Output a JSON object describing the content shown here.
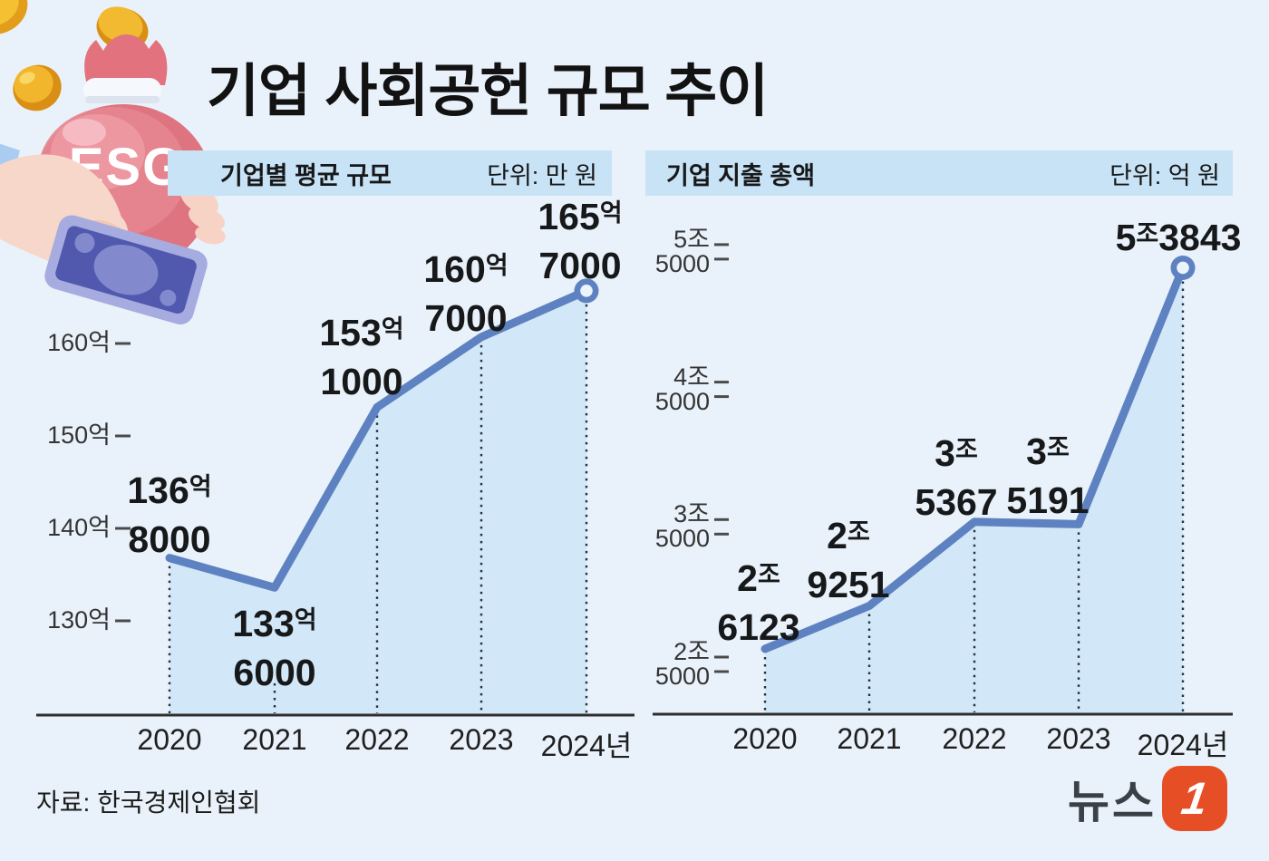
{
  "page": {
    "background": "#e9f2fa"
  },
  "title": "기업 사회공헌 규모 추이",
  "illustration": {
    "bag_text": "ESG"
  },
  "source_line": "자료: 한국경제인협회",
  "logo": {
    "wordmark": "뉴스",
    "badge": "1",
    "badge_color": "#e64e25",
    "text_color": "#3a4046"
  },
  "colors": {
    "line": "#5e82c1",
    "area_fill": "#d2e7f7",
    "header_bar": "#c8e3f5",
    "axis": "#2e2e2e",
    "guide_dot": "#24313f",
    "background": "#e9f2fa"
  },
  "chart_data": [
    {
      "type": "area",
      "title": "기업별 평균 규모",
      "unit_label": "단위: 만 원",
      "x_labels": [
        "2020",
        "2021",
        "2022",
        "2023",
        "2024년"
      ],
      "values": [
        136.8,
        133.6,
        153.1,
        160.7,
        165.7
      ],
      "value_unit": "억 원 (표기 단위: 만 원)",
      "point_labels": [
        {
          "big": "136",
          "suffix": "억",
          "sub": "8000"
        },
        {
          "big": "133",
          "suffix": "억",
          "sub": "6000"
        },
        {
          "big": "153",
          "suffix": "억",
          "sub": "1000"
        },
        {
          "big": "160",
          "suffix": "억",
          "sub": "7000"
        },
        {
          "big": "165",
          "suffix": "억",
          "sub": "7000"
        }
      ],
      "y_ticks": [
        {
          "value": 160,
          "label": "160억"
        },
        {
          "value": 150,
          "label": "150억"
        },
        {
          "value": 140,
          "label": "140억"
        },
        {
          "value": 130,
          "label": "130억"
        }
      ],
      "ylim": [
        120,
        172
      ],
      "grid": false,
      "legend": false
    },
    {
      "type": "area",
      "title": "기업 지출 총액",
      "unit_label": "단위: 억 원",
      "x_labels": [
        "2020",
        "2021",
        "2022",
        "2023",
        "2024년"
      ],
      "values": [
        26123,
        29251,
        35367,
        35191,
        53843
      ],
      "value_unit": "억 원",
      "point_labels": [
        {
          "big": "2",
          "suffix": "조",
          "sub": "6123"
        },
        {
          "big": "2",
          "suffix": "조",
          "sub": "9251"
        },
        {
          "big": "3",
          "suffix": "조",
          "sub": "5367"
        },
        {
          "big": "3",
          "suffix": "조",
          "sub": "5191"
        },
        {
          "big": "5",
          "suffix": "조",
          "sub": "3843",
          "inline": true
        }
      ],
      "y_ticks": [
        {
          "value": 55000,
          "label": [
            "5조",
            "5000"
          ]
        },
        {
          "value": 45000,
          "label": [
            "4조",
            "5000"
          ]
        },
        {
          "value": 35000,
          "label": [
            "3조",
            "5000"
          ]
        },
        {
          "value": 25000,
          "label": [
            "2조",
            "5000"
          ]
        }
      ],
      "ylim": [
        20000,
        58000
      ],
      "grid": false,
      "legend": false
    }
  ]
}
